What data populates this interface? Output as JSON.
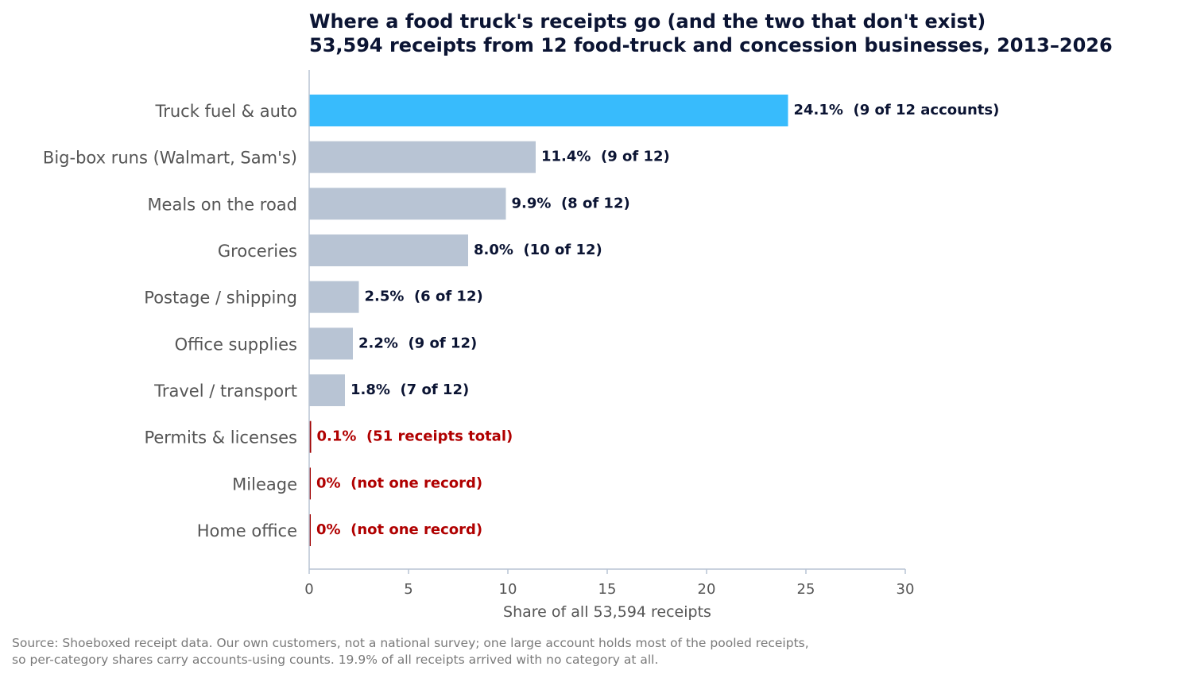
{
  "chart_data": {
    "type": "bar",
    "orientation": "horizontal",
    "title_lines": [
      "Where a food truck's receipts go (and the two that don't exist)",
      "53,594 receipts from 12 food-truck and concession businesses, 2013–2026"
    ],
    "xlabel": "Share of all 53,594 receipts",
    "ylabel": "",
    "xlim": [
      0,
      30
    ],
    "xticks": [
      0,
      5,
      10,
      15,
      20,
      25,
      30
    ],
    "grid": false,
    "categories": [
      "Truck fuel & auto",
      "Big-box runs (Walmart, Sam's)",
      "Meals on the road",
      "Groceries",
      "Postage / shipping",
      "Office supplies",
      "Travel / transport",
      "Permits & licenses",
      "Mileage",
      "Home office"
    ],
    "values": [
      24.1,
      11.4,
      9.9,
      8.0,
      2.5,
      2.2,
      1.8,
      0.1,
      0,
      0
    ],
    "data_labels": [
      "24.1%  (9 of 12 accounts)",
      "11.4%  (9 of 12)",
      "9.9%  (8 of 12)",
      "8.0%  (10 of 12)",
      "2.5%  (6 of 12)",
      "2.2%  (9 of 12)",
      "1.8%  (7 of 12)",
      "0.1%  (51 receipts total)",
      "0%  (not one record)",
      "0%  (not one record)"
    ],
    "bar_colors": [
      "#38bbfc",
      "#b8c4d4",
      "#b8c4d4",
      "#b8c4d4",
      "#b8c4d4",
      "#b8c4d4",
      "#b8c4d4",
      "#a00000",
      "#a00000",
      "#a00000"
    ],
    "label_colors": [
      "#0b1433",
      "#0b1433",
      "#0b1433",
      "#0b1433",
      "#0b1433",
      "#0b1433",
      "#0b1433",
      "#b00000",
      "#b00000",
      "#b00000"
    ],
    "source_lines": [
      "Source: Shoeboxed receipt data. Our own customers, not a national survey; one large account holds most of the pooled receipts,",
      "so per-category shares carry accounts-using counts. 19.9% of all receipts arrived with no category at all."
    ]
  },
  "colors": {
    "highlight": "#38bbfc",
    "default_bar": "#b8c4d4",
    "zero_bar": "#a00000",
    "zero_label": "#b00000",
    "axis": "#b8c4d4",
    "text": "#0b1433"
  }
}
